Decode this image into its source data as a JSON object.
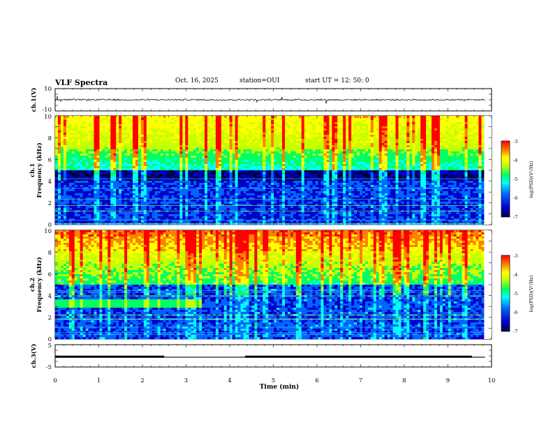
{
  "header": {
    "title": "VLF Spectra",
    "date": "Oct. 16, 2025",
    "station": "station=OUI",
    "start": "start  UT =   12: 50: 0"
  },
  "x_axis": {
    "label": "Time  (min)",
    "ticks": [
      "0",
      "1",
      "2",
      "3",
      "4",
      "5",
      "6",
      "7",
      "8",
      "9",
      "10"
    ]
  },
  "colors": {
    "spectrum_scale": [
      "#000040",
      "#0000c8",
      "#0064ff",
      "#00ffff",
      "#00ff64",
      "#c8ff00",
      "#ffff00",
      "#ff8000",
      "#ff0000"
    ]
  },
  "chart_data": [
    {
      "type": "line",
      "name": "ch1-waveform",
      "ylabel": "ch.1(V)",
      "ylim": [
        -10,
        10
      ],
      "ytick_labels": [
        "10",
        "-10"
      ],
      "xlim": [
        0,
        10
      ],
      "baseline": 0,
      "note": "noisy waveform near 0 V with sparse spikes"
    },
    {
      "type": "heatmap",
      "name": "ch1-spectrogram",
      "ylabel": "ch.1\nFrequency (kHz)",
      "ytick_labels": [
        "0",
        "2",
        "4",
        "6",
        "8",
        "10"
      ],
      "ylim": [
        0,
        10
      ],
      "xlim": [
        0,
        9.83
      ],
      "colorbar": {
        "label": "log(PSD)(V²/Hz)",
        "range": [
          -7,
          -3
        ],
        "tick_labels": [
          "-3",
          "-4",
          "-5",
          "-6",
          "-7"
        ]
      }
    },
    {
      "type": "heatmap",
      "name": "ch2-spectrogram",
      "ylabel": "ch.2\nFrequency (kHz)",
      "ytick_labels": [
        "0",
        "2",
        "4",
        "6",
        "8",
        "10"
      ],
      "ylim": [
        0,
        10
      ],
      "xlim": [
        0,
        9.83
      ],
      "band_kHz": 3.3,
      "band_end_min": 3.3,
      "colorbar": {
        "label": "log(PSD)(V²/Hz)",
        "range": [
          -7,
          -3
        ],
        "tick_labels": [
          "-3",
          "-4",
          "-5",
          "-6",
          "-7"
        ]
      }
    },
    {
      "type": "line",
      "name": "ch3-level",
      "ylabel": "ch.3(V)",
      "ylim": [
        -5,
        5
      ],
      "ytick_labels": [
        "5",
        "-5"
      ],
      "xlim": [
        0,
        10
      ],
      "segments": [
        {
          "x": [
            0,
            2.5
          ],
          "y": -0.4
        },
        {
          "x": [
            2.5,
            4.35
          ],
          "y": -0.6
        },
        {
          "x": [
            4.35,
            9.55
          ],
          "y": -0.4
        },
        {
          "x": [
            9.55,
            9.85
          ],
          "y": -0.6
        }
      ]
    }
  ]
}
